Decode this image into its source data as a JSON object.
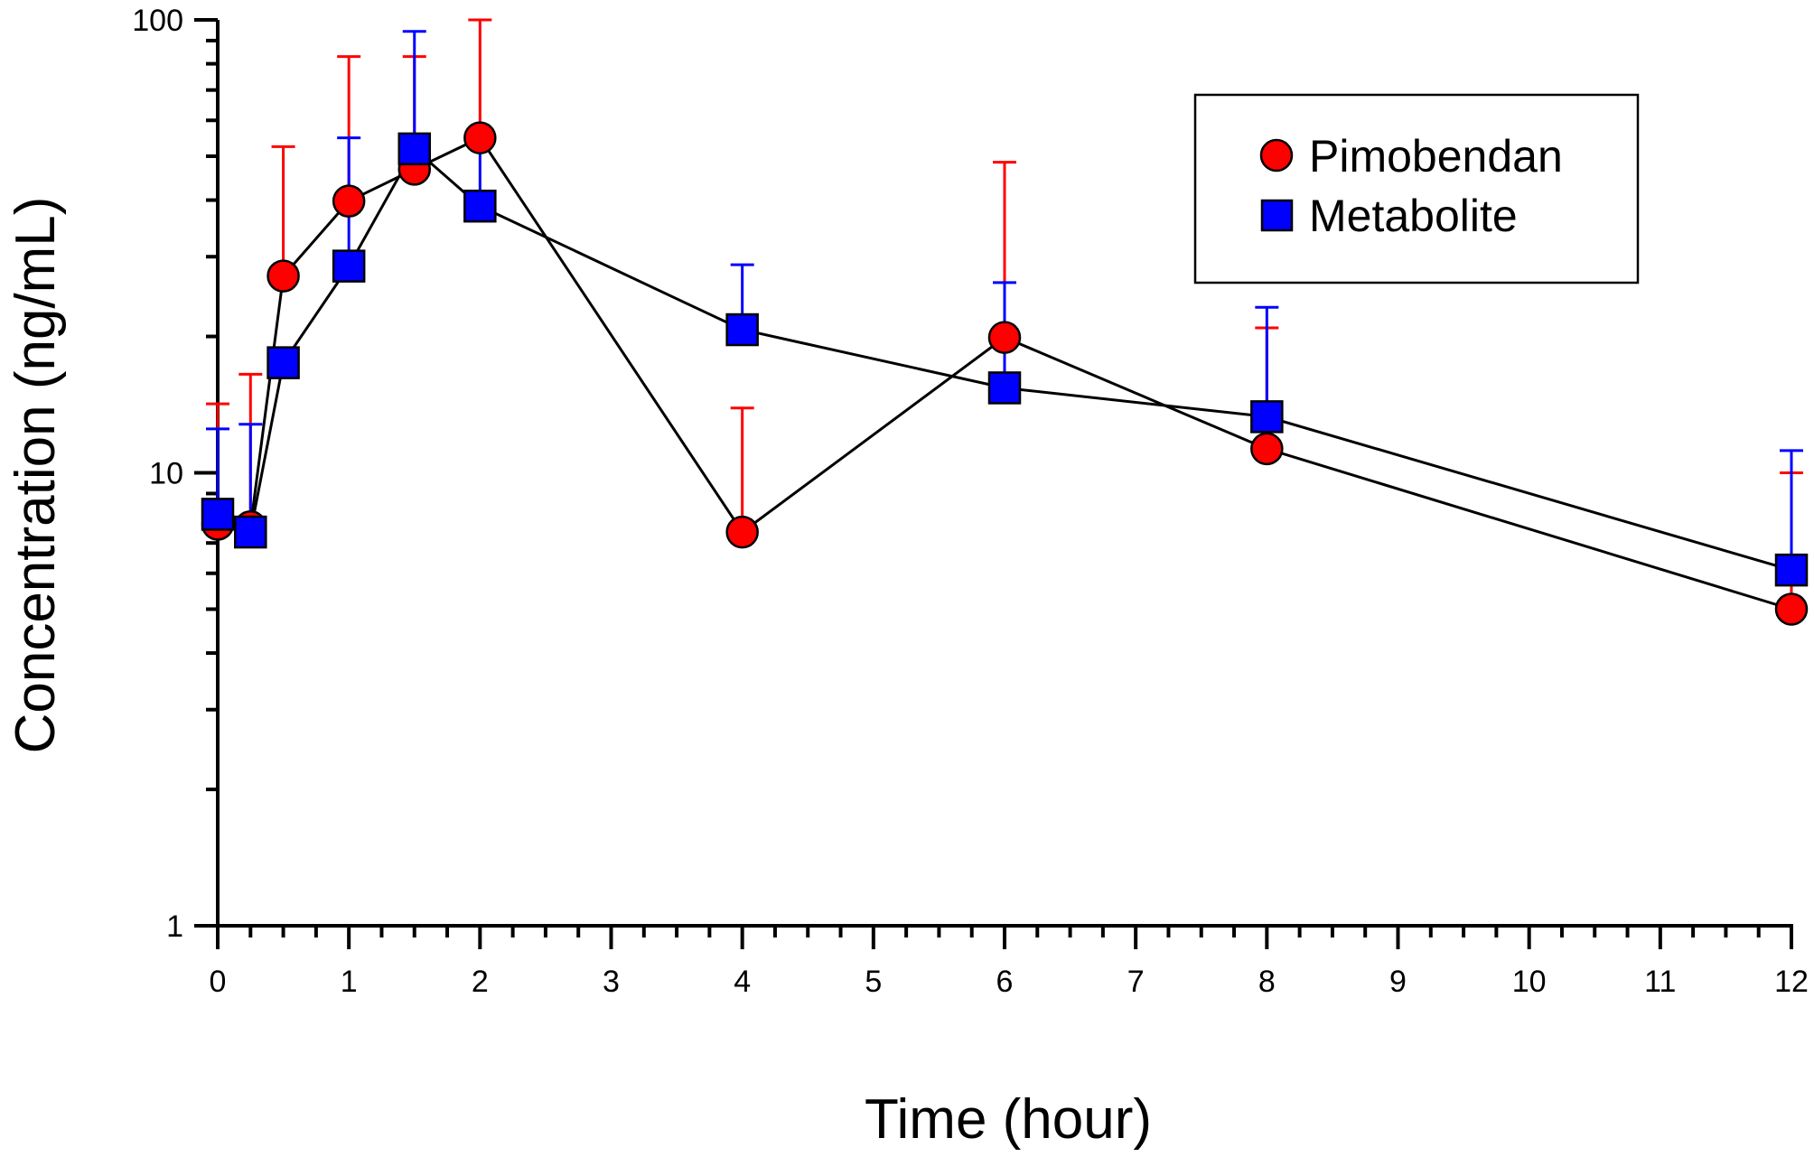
{
  "chart_data": {
    "type": "line",
    "title": "",
    "xlabel": "Time (hour)",
    "ylabel": "Concentration (ng/mL)",
    "x_scale": "linear",
    "y_scale": "log",
    "xlim": [
      0,
      12
    ],
    "ylim": [
      1,
      100
    ],
    "x_ticks": [
      "0",
      "1",
      "2",
      "3",
      "4",
      "5",
      "6",
      "7",
      "8",
      "9",
      "10",
      "11",
      "12"
    ],
    "y_ticks": [
      "1",
      "10",
      "100"
    ],
    "grid": false,
    "legend_position": "top-right",
    "legend_title": "",
    "series": [
      {
        "name": "Pimobendan",
        "color": "#ff0000",
        "error_color": "#ff0000",
        "marker": "circle",
        "points": [
          {
            "x": 0,
            "y": 7.7,
            "err_upper": 14.2
          },
          {
            "x": 0.25,
            "y": 7.6,
            "err_upper": 16.5
          },
          {
            "x": 0.5,
            "y": 27.2,
            "err_upper": 52.5
          },
          {
            "x": 1,
            "y": 39.8,
            "err_upper": 83.0
          },
          {
            "x": 1.5,
            "y": 46.8,
            "err_upper": 83.0
          },
          {
            "x": 2,
            "y": 54.9,
            "err_upper": 100
          },
          {
            "x": 4,
            "y": 7.4,
            "err_upper": 13.9
          },
          {
            "x": 6,
            "y": 19.9,
            "err_upper": 48.5
          },
          {
            "x": 8,
            "y": 11.3,
            "err_upper": 20.9
          },
          {
            "x": 12,
            "y": 5.0,
            "err_upper": 10.0
          }
        ]
      },
      {
        "name": "Metabolite",
        "color": "#0000ff",
        "error_color": "#0000ff",
        "marker": "square",
        "points": [
          {
            "x": 0,
            "y": 8.1,
            "err_upper": 12.5
          },
          {
            "x": 0.25,
            "y": 7.4,
            "err_upper": 12.8
          },
          {
            "x": 0.5,
            "y": 17.5,
            "err_upper": 17.5
          },
          {
            "x": 1,
            "y": 28.6,
            "err_upper": 54.9
          },
          {
            "x": 1.5,
            "y": 51.9,
            "err_upper": 94.3
          },
          {
            "x": 2,
            "y": 38.8,
            "err_upper": 53.6
          },
          {
            "x": 4,
            "y": 20.7,
            "err_upper": 28.8
          },
          {
            "x": 6,
            "y": 15.4,
            "err_upper": 26.3
          },
          {
            "x": 8,
            "y": 13.3,
            "err_upper": 23.2
          },
          {
            "x": 12,
            "y": 6.1,
            "err_upper": 11.2
          }
        ]
      }
    ]
  }
}
